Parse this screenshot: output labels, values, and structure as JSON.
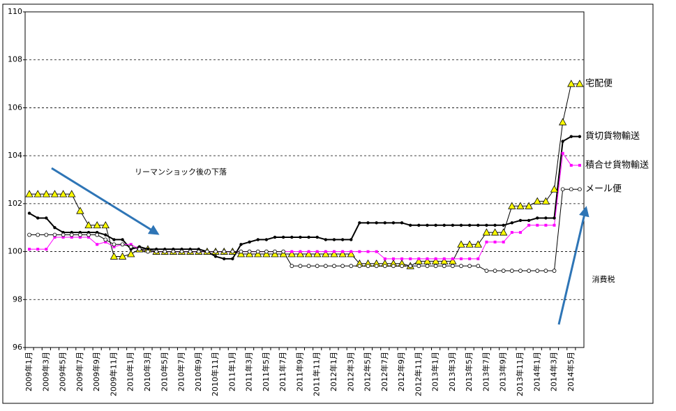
{
  "chart_data": {
    "type": "line",
    "categories": [
      "2009年1月",
      null,
      "2009年3月",
      null,
      "2009年5月",
      null,
      "2009年7月",
      null,
      "2009年9月",
      null,
      "2009年11月",
      null,
      "2010年1月",
      null,
      "2010年3月",
      null,
      "2010年5月",
      null,
      "2010年7月",
      null,
      "2010年9月",
      null,
      "2010年11月",
      null,
      "2011年1月",
      null,
      "2011年3月",
      null,
      "2011年5月",
      null,
      "2011年7月",
      null,
      "2011年9月",
      null,
      "2011年11月",
      null,
      "2012年1月",
      null,
      "2012年3月",
      null,
      "2012年5月",
      null,
      "2012年7月",
      null,
      "2012年9月",
      null,
      "2012年11月",
      null,
      "2013年1月",
      null,
      "2013年3月",
      null,
      "2013年5月",
      null,
      "2013年7月",
      null,
      "2013年9月",
      null,
      "2013年11月",
      null,
      "2014年1月",
      null,
      "2014年3月",
      null,
      "2014年5月",
      null
    ],
    "ylim": [
      96,
      110
    ],
    "yticks": [
      96,
      98,
      100,
      102,
      104,
      106,
      108,
      110
    ],
    "grid": true,
    "annotations": [
      "リーマンショック後の下落",
      "消費税"
    ],
    "series": [
      {
        "name": "宅配便",
        "color": "#ffff00",
        "line_color": "#000000",
        "marker": "triangle",
        "values": [
          102.4,
          102.4,
          102.4,
          102.4,
          102.4,
          102.4,
          101.7,
          101.1,
          101.1,
          101.1,
          99.8,
          99.8,
          99.9,
          100.1,
          100.1,
          100.0,
          100.0,
          100.0,
          100.0,
          100.0,
          100.0,
          100.0,
          100.0,
          100.0,
          100.0,
          99.9,
          99.9,
          99.9,
          99.9,
          99.9,
          99.9,
          99.9,
          99.9,
          99.9,
          99.9,
          99.9,
          99.9,
          99.9,
          99.9,
          99.5,
          99.5,
          99.5,
          99.5,
          99.5,
          99.5,
          99.4,
          99.6,
          99.6,
          99.6,
          99.6,
          99.6,
          100.3,
          100.3,
          100.3,
          100.8,
          100.8,
          100.8,
          101.9,
          101.9,
          101.9,
          102.1,
          102.1,
          102.6,
          105.4,
          107.0,
          107.0
        ]
      },
      {
        "name": "貨切貨物輸送",
        "color": "#000000",
        "line_color": "#000000",
        "marker": "dot",
        "values": [
          101.6,
          101.4,
          101.4,
          101.0,
          100.8,
          100.8,
          100.8,
          100.8,
          100.8,
          100.7,
          100.5,
          100.5,
          100.1,
          100.2,
          100.1,
          100.1,
          100.1,
          100.1,
          100.1,
          100.1,
          100.1,
          100.0,
          99.8,
          99.7,
          99.7,
          100.3,
          100.4,
          100.5,
          100.5,
          100.6,
          100.6,
          100.6,
          100.6,
          100.6,
          100.6,
          100.5,
          100.5,
          100.5,
          100.5,
          101.2,
          101.2,
          101.2,
          101.2,
          101.2,
          101.2,
          101.1,
          101.1,
          101.1,
          101.1,
          101.1,
          101.1,
          101.1,
          101.1,
          101.1,
          101.1,
          101.1,
          101.1,
          101.2,
          101.3,
          101.3,
          101.4,
          101.4,
          101.4,
          104.6,
          104.8,
          104.8
        ]
      },
      {
        "name": "積合せ貨物輸送",
        "color": "#ff00ff",
        "line_color": "#ff00ff",
        "marker": "square",
        "values": [
          100.1,
          100.1,
          100.1,
          100.6,
          100.6,
          100.6,
          100.6,
          100.6,
          100.3,
          100.4,
          100.2,
          100.3,
          100.3,
          100.1,
          100.0,
          100.0,
          100.0,
          100.0,
          100.0,
          100.0,
          100.0,
          100.0,
          100.0,
          100.0,
          100.0,
          100.0,
          100.0,
          100.0,
          100.0,
          100.0,
          100.0,
          100.0,
          100.0,
          100.0,
          100.0,
          100.0,
          100.0,
          100.0,
          100.0,
          100.0,
          100.0,
          100.0,
          99.7,
          99.7,
          99.7,
          99.7,
          99.7,
          99.7,
          99.7,
          99.7,
          99.7,
          99.7,
          99.7,
          99.7,
          100.4,
          100.4,
          100.4,
          100.8,
          100.8,
          101.1,
          101.1,
          101.1,
          101.1,
          104.1,
          103.6,
          103.6
        ]
      },
      {
        "name": "メール便",
        "color": "#ffffff",
        "line_color": "#000000",
        "marker": "circle",
        "values": [
          100.7,
          100.7,
          100.7,
          100.7,
          100.7,
          100.7,
          100.7,
          100.7,
          100.7,
          100.5,
          100.3,
          100.3,
          100.2,
          100.1,
          100.0,
          100.0,
          100.0,
          100.0,
          100.0,
          100.0,
          100.0,
          100.0,
          100.0,
          100.0,
          100.0,
          100.0,
          100.0,
          100.0,
          100.0,
          100.0,
          100.0,
          99.4,
          99.4,
          99.4,
          99.4,
          99.4,
          99.4,
          99.4,
          99.4,
          99.4,
          99.4,
          99.4,
          99.4,
          99.4,
          99.4,
          99.4,
          99.4,
          99.4,
          99.4,
          99.4,
          99.4,
          99.4,
          99.4,
          99.4,
          99.2,
          99.2,
          99.2,
          99.2,
          99.2,
          99.2,
          99.2,
          99.2,
          99.2,
          102.6,
          102.6,
          102.6
        ]
      }
    ]
  }
}
